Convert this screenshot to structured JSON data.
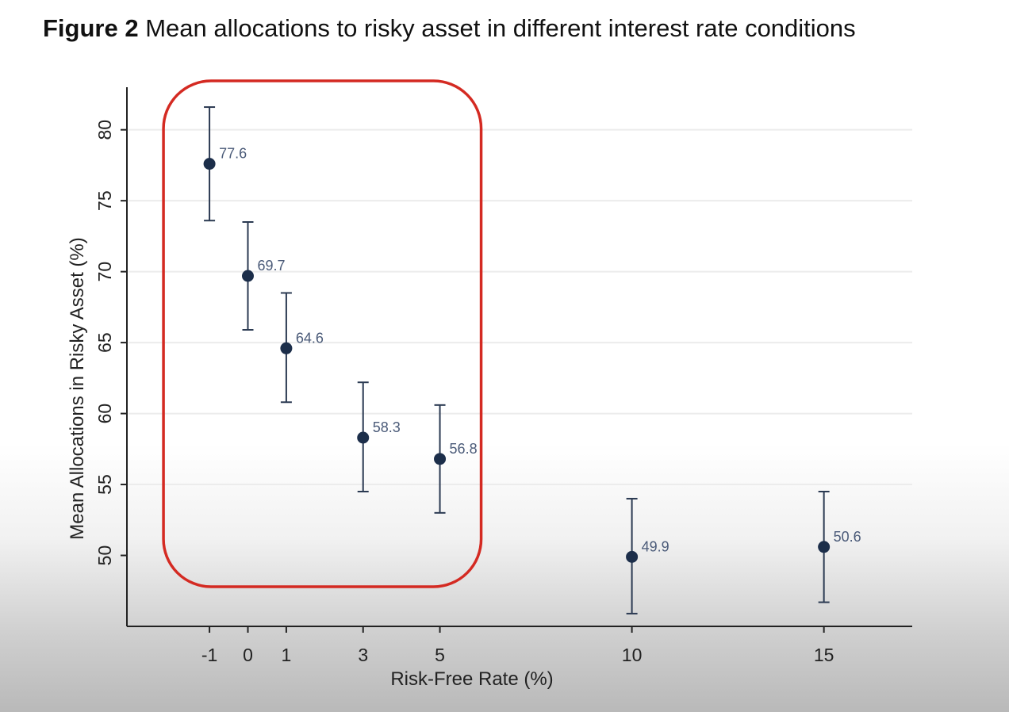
{
  "figure": {
    "number_label": "Figure 2",
    "caption": "Mean allocations to risky asset in different interest rate conditions"
  },
  "chart_data": {
    "type": "scatter",
    "xlabel": "Risk-Free Rate (%)",
    "ylabel": "Mean Allocations in Risky Asset (%)",
    "x_ticks": [
      -1,
      0,
      1,
      3,
      5,
      10,
      15
    ],
    "y_ticks": [
      50,
      55,
      60,
      65,
      70,
      75,
      80
    ],
    "xlim": [
      -3.15,
      17.3
    ],
    "ylim": [
      45,
      83
    ],
    "grid": true,
    "points": [
      {
        "x": -1,
        "y": 77.6,
        "ci_low": 73.6,
        "ci_high": 81.6,
        "label": "77.6"
      },
      {
        "x": 0,
        "y": 69.7,
        "ci_low": 65.9,
        "ci_high": 73.5,
        "label": "69.7"
      },
      {
        "x": 1,
        "y": 64.6,
        "ci_low": 60.8,
        "ci_high": 68.5,
        "label": "64.6"
      },
      {
        "x": 3,
        "y": 58.3,
        "ci_low": 54.5,
        "ci_high": 62.2,
        "label": "58.3"
      },
      {
        "x": 5,
        "y": 56.8,
        "ci_low": 53.0,
        "ci_high": 60.6,
        "label": "56.8"
      },
      {
        "x": 10,
        "y": 49.9,
        "ci_low": 45.9,
        "ci_high": 54.0,
        "label": "49.9"
      },
      {
        "x": 15,
        "y": 50.6,
        "ci_low": 46.7,
        "ci_high": 54.5,
        "label": "50.6"
      }
    ],
    "highlight": {
      "x_from": -1,
      "x_to": 5,
      "color": "#d42a22"
    },
    "colors": {
      "marker": "#1c2e4a",
      "errorbar": "#2b3a52",
      "label": "#4a5a78",
      "grid": "#ececec",
      "axis": "#222222"
    }
  }
}
